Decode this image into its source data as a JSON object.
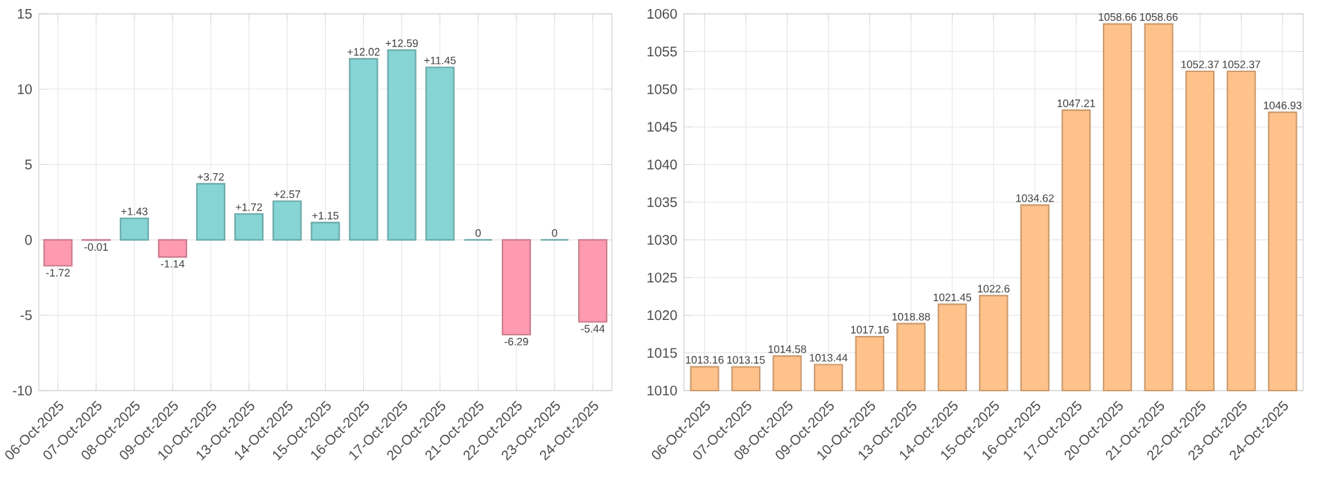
{
  "chart_data": [
    {
      "type": "bar",
      "categories": [
        "06-Oct-2025",
        "07-Oct-2025",
        "08-Oct-2025",
        "09-Oct-2025",
        "10-Oct-2025",
        "13-Oct-2025",
        "14-Oct-2025",
        "15-Oct-2025",
        "16-Oct-2025",
        "17-Oct-2025",
        "20-Oct-2025",
        "21-Oct-2025",
        "22-Oct-2025",
        "23-Oct-2025",
        "24-Oct-2025"
      ],
      "values": [
        -1.72,
        -0.01,
        1.43,
        -1.14,
        3.72,
        1.72,
        2.57,
        1.15,
        12.02,
        12.59,
        11.45,
        0,
        -6.29,
        0,
        -5.44
      ],
      "value_labels": [
        "-1.72",
        "-0.01",
        "+1.43",
        "-1.14",
        "+3.72",
        "+1.72",
        "+2.57",
        "+1.15",
        "+12.02",
        "+12.59",
        "+11.45",
        "0",
        "-6.29",
        "0",
        "-5.44"
      ],
      "colors": [
        "#ff9bb0",
        "#ff9bb0",
        "#86d4d4",
        "#ff9bb0",
        "#86d4d4",
        "#86d4d4",
        "#86d4d4",
        "#86d4d4",
        "#86d4d4",
        "#86d4d4",
        "#86d4d4",
        "#86d4d4",
        "#ff9bb0",
        "#86d4d4",
        "#ff9bb0"
      ],
      "ylim": [
        -10,
        15
      ],
      "yticks": [
        -10,
        -5,
        0,
        5,
        10,
        15
      ],
      "grid": true
    },
    {
      "type": "bar",
      "categories": [
        "06-Oct-2025",
        "07-Oct-2025",
        "08-Oct-2025",
        "09-Oct-2025",
        "10-Oct-2025",
        "13-Oct-2025",
        "14-Oct-2025",
        "15-Oct-2025",
        "16-Oct-2025",
        "17-Oct-2025",
        "20-Oct-2025",
        "21-Oct-2025",
        "22-Oct-2025",
        "23-Oct-2025",
        "24-Oct-2025"
      ],
      "values": [
        1013.16,
        1013.15,
        1014.58,
        1013.44,
        1017.16,
        1018.88,
        1021.45,
        1022.6,
        1034.62,
        1047.21,
        1058.66,
        1058.66,
        1052.37,
        1052.37,
        1046.93
      ],
      "color": "#ffc28a",
      "data_labels": true,
      "ylim": [
        1010,
        1060
      ],
      "yticks": [
        1010,
        1015,
        1020,
        1025,
        1030,
        1035,
        1040,
        1045,
        1050,
        1055,
        1060
      ],
      "grid": true
    }
  ]
}
